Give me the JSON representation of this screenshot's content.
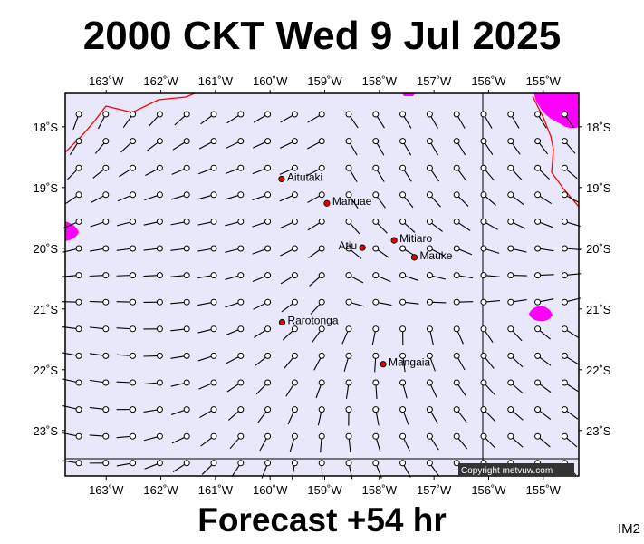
{
  "title": "2000 CKT Wed 9 Jul 2025",
  "footer": "Forecast +54 hr",
  "model_tag": "IM2",
  "copyright": "Copyright metvuw.com",
  "colors": {
    "ocean": "#e8e8fa",
    "coast": "#ff0000",
    "strong_wind": "#ff00ff",
    "place_marker": "#dd0000",
    "frame": "#000000"
  },
  "map": {
    "lon_range": [
      -163.75,
      -154.35
    ],
    "lat_range": [
      -17.45,
      -23.75
    ],
    "lon_ticks": [
      {
        "lon": -163,
        "label": "163˚W"
      },
      {
        "lon": -162,
        "label": "162˚W"
      },
      {
        "lon": -161,
        "label": "161˚W"
      },
      {
        "lon": -160,
        "label": "160˚W"
      },
      {
        "lon": -159,
        "label": "159˚W"
      },
      {
        "lon": -158,
        "label": "158˚W"
      },
      {
        "lon": -157,
        "label": "157˚W"
      },
      {
        "lon": -156,
        "label": "156˚W"
      },
      {
        "lon": -155,
        "label": "155˚W"
      }
    ],
    "lat_ticks": [
      {
        "lat": -18,
        "label": "18˚S"
      },
      {
        "lat": -19,
        "label": "19˚S"
      },
      {
        "lat": -20,
        "label": "20˚S"
      },
      {
        "lat": -21,
        "label": "21˚S"
      },
      {
        "lat": -22,
        "label": "22˚S"
      },
      {
        "lat": -23,
        "label": "23˚S"
      }
    ],
    "places": [
      {
        "name": "Aitutaki",
        "lon": -159.79,
        "lat": -18.86,
        "label_side": "right"
      },
      {
        "name": "Manuae",
        "lon": -158.96,
        "lat": -19.26,
        "label_side": "right"
      },
      {
        "name": "Mitiaro",
        "lon": -157.73,
        "lat": -19.87,
        "label_side": "right"
      },
      {
        "name": "Atiu",
        "lon": -158.31,
        "lat": -19.99,
        "label_side": "left"
      },
      {
        "name": "Mauke",
        "lon": -157.36,
        "lat": -20.15,
        "label_side": "right"
      },
      {
        "name": "Rarotonga",
        "lon": -159.78,
        "lat": -21.22,
        "label_side": "right"
      },
      {
        "name": "Mangaia",
        "lon": -157.93,
        "lat": -21.91,
        "label_side": "right"
      }
    ]
  }
}
